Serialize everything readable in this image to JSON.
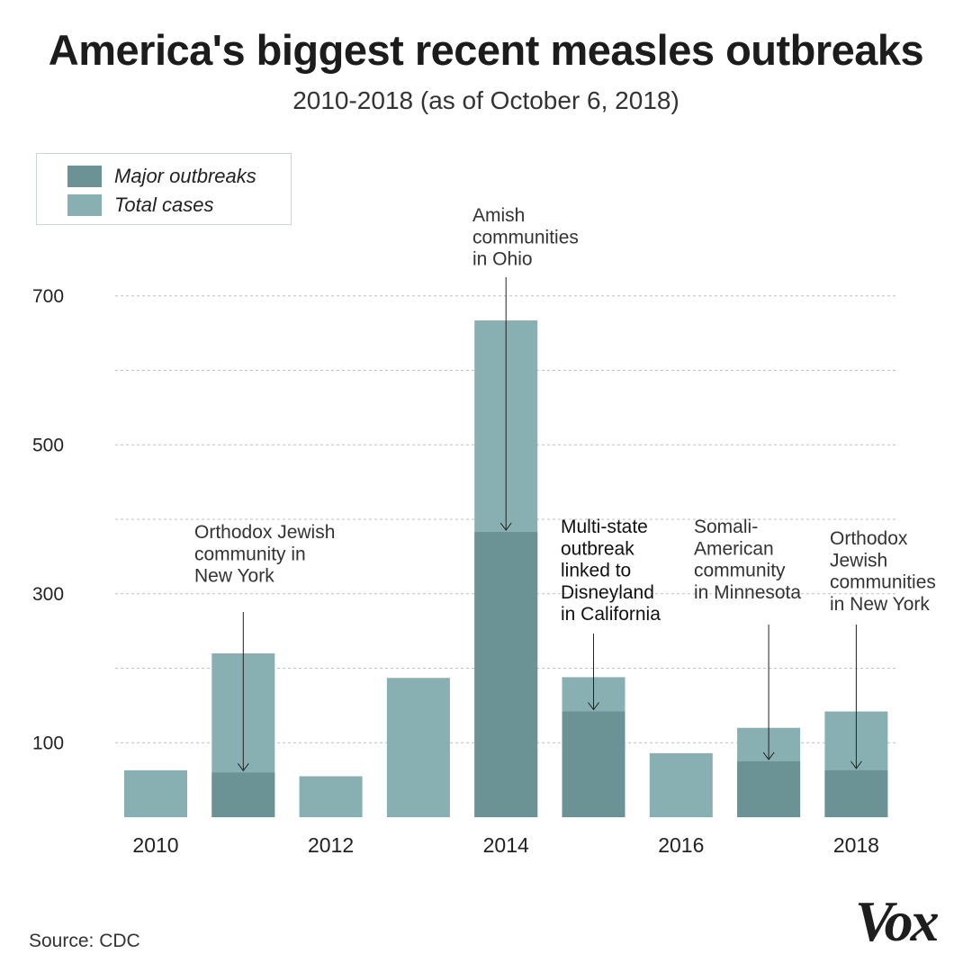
{
  "title": "America's biggest recent measles outbreaks",
  "subtitle": "2010-2018 (as of October 6, 2018)",
  "source": "Source: CDC",
  "logo": "Vox",
  "colors": {
    "major": "#6b9294",
    "total": "#88b0b3",
    "grid": "#bfbfbf"
  },
  "legend": {
    "major": "Major outbreaks",
    "total": "Total cases"
  },
  "chart_data": {
    "type": "bar",
    "title": "America's biggest recent measles outbreaks",
    "subtitle": "2010-2018 (as of October 6, 2018)",
    "xlabel": "",
    "ylabel": "",
    "categories": [
      "2010",
      "2011",
      "2012",
      "2013",
      "2014",
      "2015",
      "2016",
      "2017",
      "2018"
    ],
    "x_tick_labels": [
      "2010",
      "",
      "2012",
      "",
      "2014",
      "",
      "2016",
      "",
      "2018"
    ],
    "series": [
      {
        "name": "Total cases",
        "values": [
          63,
          220,
          55,
          187,
          667,
          188,
          86,
          120,
          142
        ]
      },
      {
        "name": "Major outbreaks",
        "values": [
          null,
          60,
          null,
          null,
          383,
          142,
          null,
          75,
          63
        ]
      }
    ],
    "y_ticks": [
      100,
      300,
      500,
      700
    ],
    "ylim": [
      0,
      780
    ],
    "grid": true,
    "legend_position": "top-left",
    "annotations": [
      {
        "year": "2011",
        "lines": [
          "Orthodox Jewish",
          "community in",
          "New York"
        ]
      },
      {
        "year": "2014",
        "lines": [
          "Amish",
          "communities",
          "in Ohio"
        ]
      },
      {
        "year": "2015",
        "lines": [
          "Multi-state",
          "outbreak",
          "linked to",
          "Disneyland",
          "in California"
        ]
      },
      {
        "year": "2017",
        "lines": [
          "Somali-",
          "American",
          "community",
          "in Minnesota"
        ]
      },
      {
        "year": "2018",
        "lines": [
          "Orthodox",
          "Jewish",
          "communities",
          "in New York"
        ]
      }
    ]
  }
}
